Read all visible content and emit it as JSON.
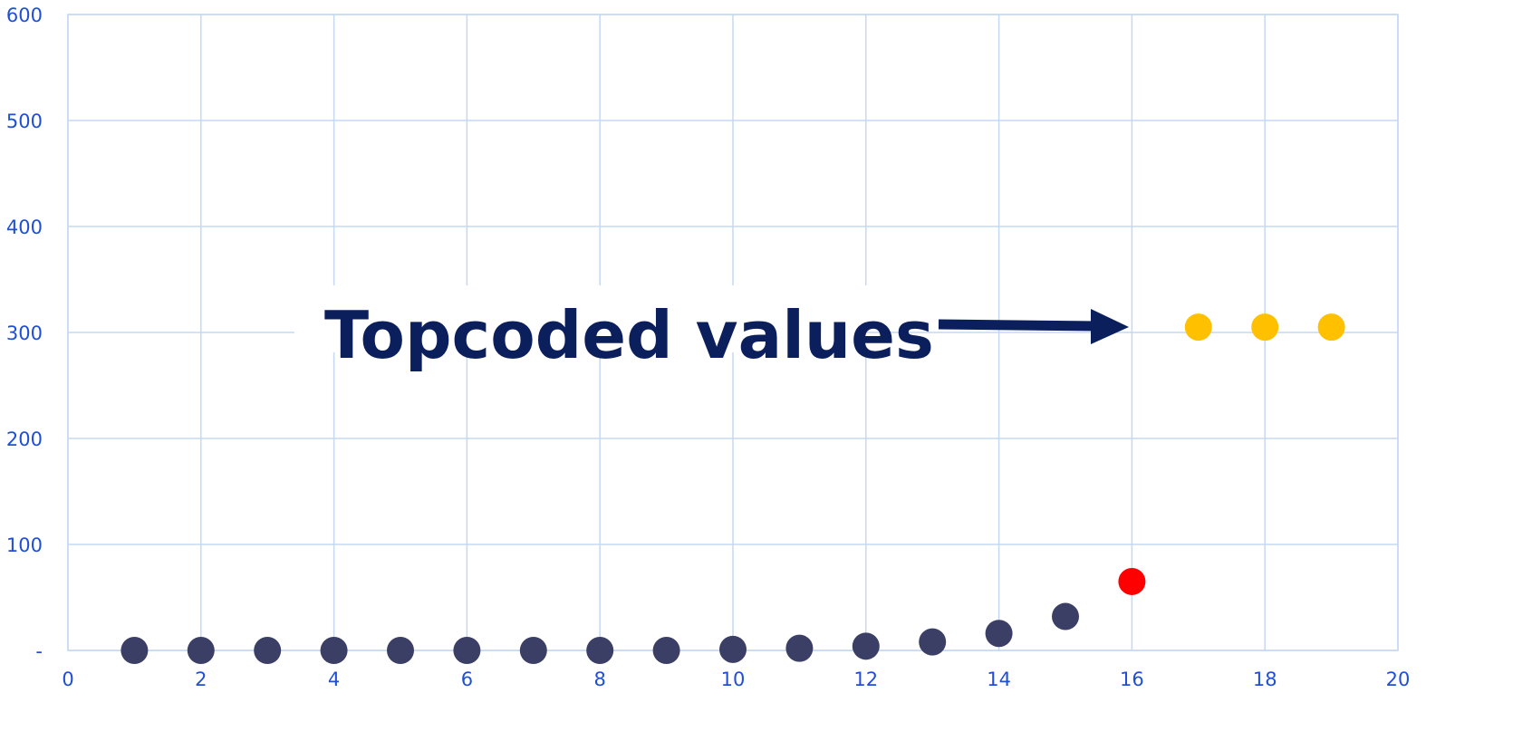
{
  "chart_data": {
    "type": "scatter",
    "title": "",
    "xlabel": "",
    "ylabel": "",
    "xlim": [
      0,
      20
    ],
    "ylim": [
      0,
      600
    ],
    "x_ticks": [
      "0",
      "2",
      "4",
      "6",
      "8",
      "10",
      "12",
      "14",
      "16",
      "18",
      "20"
    ],
    "y_ticks": [
      "-",
      "100",
      "200",
      "300",
      "400",
      "500",
      "600"
    ],
    "grid": true,
    "annotation": "Topcoded values",
    "colors": {
      "regular": "#3b3f66",
      "highlight": "#ff0000",
      "topcoded": "#ffc000",
      "grid": "#c5d8f2",
      "tick_text": "#1f4fd6",
      "annotation": "#0b1f5c"
    },
    "series": [
      {
        "role": "regular",
        "x": [
          1,
          2,
          3,
          4,
          5,
          6,
          7,
          8,
          9,
          10,
          11,
          12,
          13,
          14,
          15
        ],
        "y": [
          0,
          0,
          0,
          0,
          0,
          0,
          0,
          0,
          0,
          1,
          2,
          4,
          8,
          16,
          32
        ]
      },
      {
        "role": "highlight",
        "x": [
          16
        ],
        "y": [
          65
        ]
      },
      {
        "role": "topcoded",
        "x": [
          17,
          18,
          19
        ],
        "y": [
          305,
          305,
          305
        ]
      }
    ]
  }
}
